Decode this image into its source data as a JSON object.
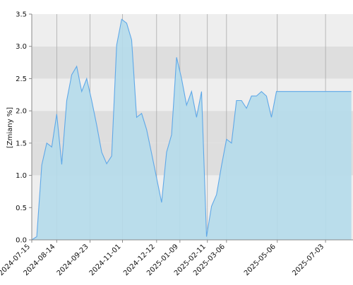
{
  "chart_data": {
    "type": "area",
    "title": "",
    "xlabel": "",
    "ylabel": "[Zmiany %]",
    "ylim": [
      0,
      3.5
    ],
    "y_ticks": [
      "0.0",
      "0.5",
      "1.0",
      "1.5",
      "2.0",
      "2.5",
      "3.0",
      "3.5"
    ],
    "x_ticks": [
      "2024-07-15",
      "2024-08-14",
      "2024-09-23",
      "2024-11-01",
      "2024-12-12",
      "2025-01-09",
      "2025-02-11",
      "2025-03-06",
      "2025-05-06",
      "2025-07-03"
    ],
    "x_range": [
      "2024-07-15",
      "2025-08-05"
    ],
    "grid": "vertical lines at x ticks; alternating horizontal bands",
    "legend": "none",
    "colors": {
      "fill": "#b5dbea",
      "line": "#5fa8e8",
      "band_light": "#eeeeee",
      "band_dark": "#dedede",
      "grid": "#aaaaaa",
      "axis": "#888888"
    },
    "series": [
      {
        "x": [
          "2024-07-15",
          "2024-07-21",
          "2024-07-27",
          "2024-08-02",
          "2024-08-08",
          "2024-08-14",
          "2024-08-20",
          "2024-08-26",
          "2024-09-01",
          "2024-09-07",
          "2024-09-13",
          "2024-09-19",
          "2024-09-25",
          "2024-10-01",
          "2024-10-07",
          "2024-10-13",
          "2024-10-19",
          "2024-10-25",
          "2024-10-31",
          "2024-11-06",
          "2024-11-12",
          "2024-11-18",
          "2024-11-24",
          "2024-11-30",
          "2024-12-06",
          "2024-12-12",
          "2024-12-18",
          "2024-12-24",
          "2024-12-30",
          "2025-01-05",
          "2025-01-11",
          "2025-01-17",
          "2025-01-23",
          "2025-01-29",
          "2025-02-04",
          "2025-02-10",
          "2025-02-16",
          "2025-02-22",
          "2025-02-28",
          "2025-03-06",
          "2025-03-12",
          "2025-03-18",
          "2025-03-24",
          "2025-03-30",
          "2025-04-05",
          "2025-04-11",
          "2025-04-17",
          "2025-04-23",
          "2025-04-29",
          "2025-05-05",
          "2025-05-11",
          "2025-05-17",
          "2025-05-23",
          "2025-05-29",
          "2025-06-04",
          "2025-06-10",
          "2025-06-16",
          "2025-06-22",
          "2025-06-28",
          "2025-07-04",
          "2025-07-10",
          "2025-07-16",
          "2025-07-22",
          "2025-07-28",
          "2025-08-03"
        ],
        "values": [
          0.0,
          0.05,
          1.16,
          1.5,
          1.44,
          1.95,
          1.17,
          2.16,
          2.56,
          2.69,
          2.3,
          2.5,
          2.16,
          1.78,
          1.36,
          1.18,
          1.3,
          3.02,
          3.42,
          3.36,
          3.1,
          1.9,
          1.96,
          1.71,
          1.34,
          0.96,
          0.58,
          1.36,
          1.63,
          2.83,
          2.5,
          2.09,
          2.3,
          1.9,
          2.3,
          0.05,
          0.52,
          0.7,
          1.15,
          1.56,
          1.5,
          2.16,
          2.16,
          2.04,
          2.23,
          2.23,
          2.3,
          2.23,
          1.9,
          2.3,
          2.3,
          2.3,
          2.3,
          2.3,
          2.3,
          2.3,
          2.3,
          2.3,
          2.3,
          2.3,
          2.3,
          2.3,
          2.3,
          2.3,
          2.3
        ]
      }
    ]
  }
}
